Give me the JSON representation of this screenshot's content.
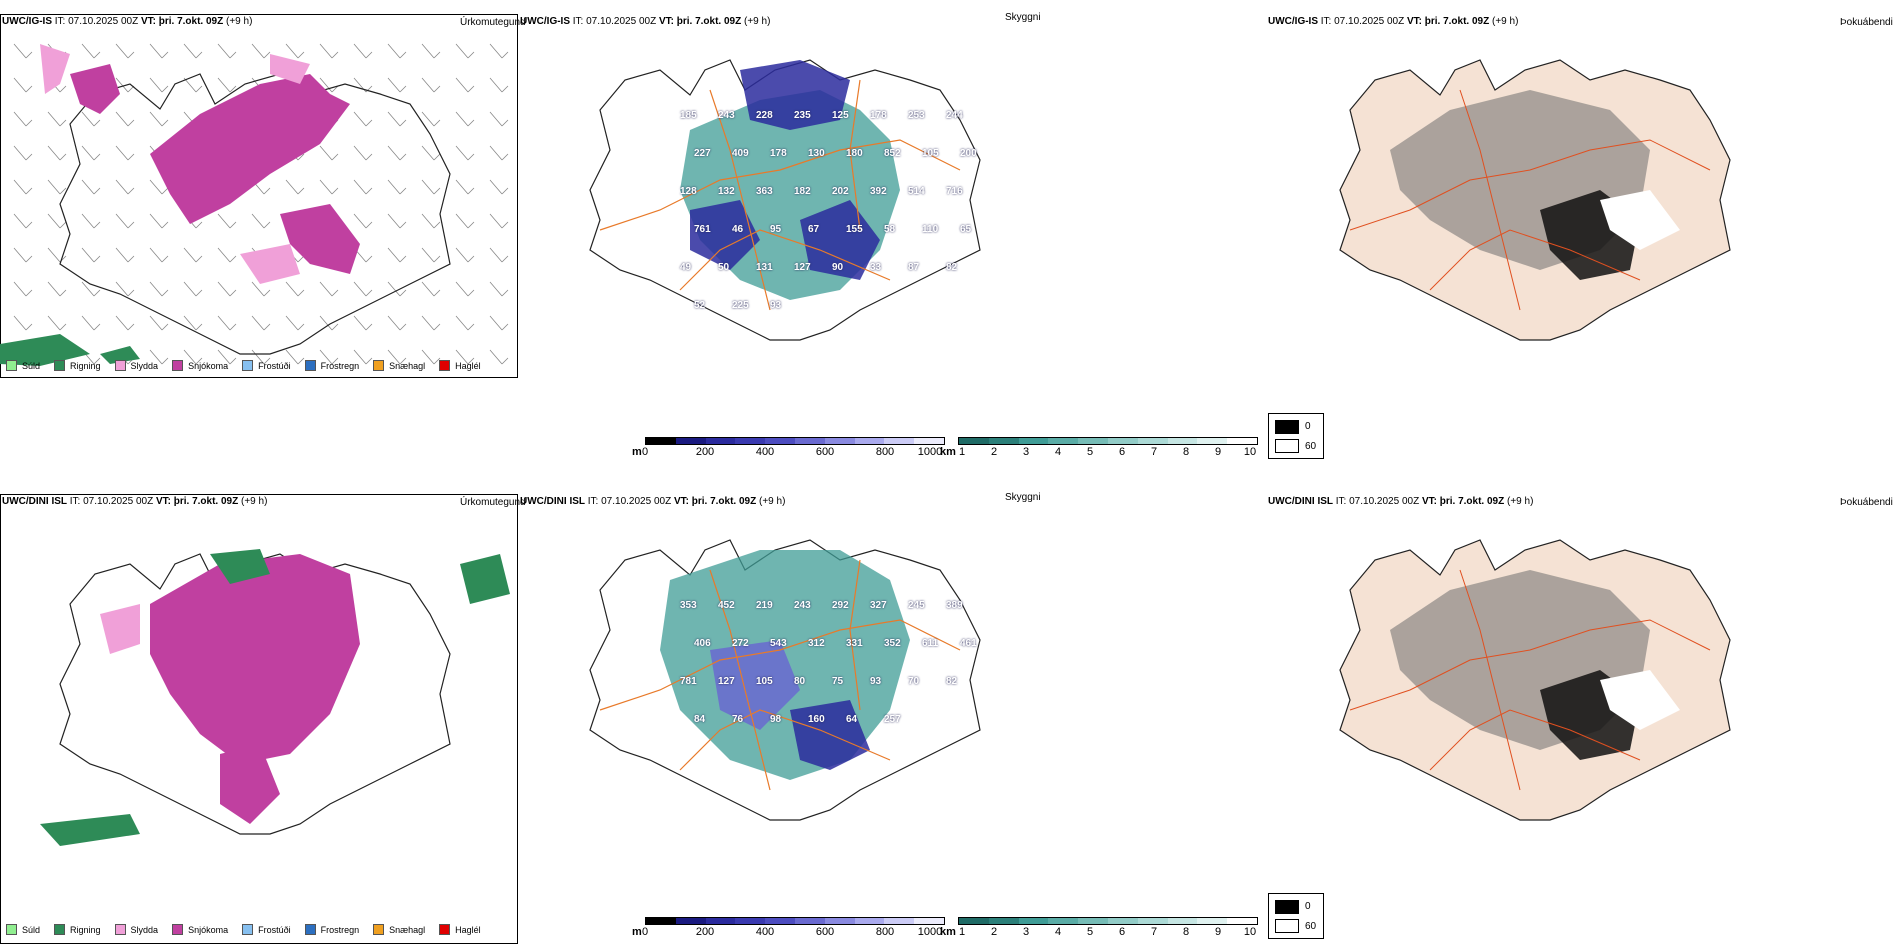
{
  "rows": [
    {
      "precip": {
        "model": "UWC/IG-IS",
        "it_label": "IT:",
        "it": "07.10.2025 00Z",
        "vt_label": "VT:",
        "vt": "þri. 7.okt. 09Z",
        "lead": "(+9 h)",
        "name": "Úrkomutegund"
      },
      "cloud": {
        "model": "UWC/IG-IS",
        "it_label": "IT:",
        "it": "07.10.2025 00Z",
        "vt_label": "VT:",
        "vt": "þri. 7.okt. 09Z",
        "lead": "(+9 h)",
        "name": "Skyggni"
      },
      "fog": {
        "model": "UWC/IG-IS",
        "it_label": "IT:",
        "it": "07.10.2025 00Z",
        "vt_label": "VT:",
        "vt": "þri. 7.okt. 09Z",
        "lead": "(+9 h)",
        "name": "Þokuábendi"
      }
    },
    {
      "precip": {
        "model": "UWC/DINI ISL",
        "it_label": "IT:",
        "it": "07.10.2025 00Z",
        "vt_label": "VT:",
        "vt": "þri. 7.okt. 09Z",
        "lead": "(+9 h)",
        "name": "Úrkomutegund"
      },
      "cloud": {
        "model": "UWC/DINI ISL",
        "it_label": "IT:",
        "it": "07.10.2025 00Z",
        "vt_label": "VT:",
        "vt": "þri. 7.okt. 09Z",
        "lead": "(+9 h)",
        "name": "Skyggni"
      },
      "fog": {
        "model": "UWC/DINI ISL",
        "it_label": "IT:",
        "it": "07.10.2025 00Z",
        "vt_label": "VT:",
        "vt": "þri. 7.okt. 09Z",
        "lead": "(+9 h)",
        "name": "Þokuábendi"
      }
    }
  ],
  "precip_legend": [
    {
      "label": "Súld",
      "color": "#90ee90"
    },
    {
      "label": "Rigning",
      "color": "#2e8b57"
    },
    {
      "label": "Slydda",
      "color": "#f0a0d8"
    },
    {
      "label": "Snjókoma",
      "color": "#c040a0"
    },
    {
      "label": "Frostúði",
      "color": "#87c0f0"
    },
    {
      "label": "Frostregn",
      "color": "#2c6fc0"
    },
    {
      "label": "Snæhagl",
      "color": "#f0a020"
    },
    {
      "label": "Haglél",
      "color": "#e00000"
    }
  ],
  "cloud_base_scale": {
    "unit": "m",
    "ticks": [
      "0",
      "200",
      "400",
      "600",
      "800",
      "1000"
    ]
  },
  "visibility_scale": {
    "unit": "km",
    "ticks": [
      "1",
      "2",
      "3",
      "4",
      "5",
      "6",
      "7",
      "8",
      "9",
      "10"
    ]
  },
  "fog_scale": {
    "ticks": [
      "0",
      "60"
    ]
  },
  "row1_cloud_labels": [
    "185",
    "243",
    "228",
    "235",
    "125",
    "178",
    "253",
    "244",
    "227",
    "409",
    "178",
    "130",
    "180",
    "852",
    "105",
    "200",
    "128",
    "132",
    "363",
    "182",
    "202",
    "392",
    "514",
    "716",
    "761",
    "46",
    "95",
    "67",
    "155",
    "58",
    "110",
    "65",
    "49",
    "50",
    "131",
    "127",
    "90",
    "33",
    "87",
    "82",
    "52",
    "225",
    "93"
  ],
  "row2_cloud_labels": [
    "353",
    "452",
    "219",
    "243",
    "292",
    "327",
    "245",
    "389",
    "406",
    "272",
    "543",
    "312",
    "331",
    "352",
    "611",
    "461",
    "781",
    "127",
    "105",
    "80",
    "75",
    "93",
    "70",
    "82",
    "84",
    "76",
    "98",
    "160",
    "64",
    "257"
  ],
  "colors": {
    "snow": "#c040a0",
    "sleet": "#f0a0d8",
    "rain": "#2e8b57",
    "cloud_low": "#2b2b9e",
    "cloud_high": "#3f9c96",
    "road": "#e87a2a",
    "land": "#f5e2d4"
  }
}
